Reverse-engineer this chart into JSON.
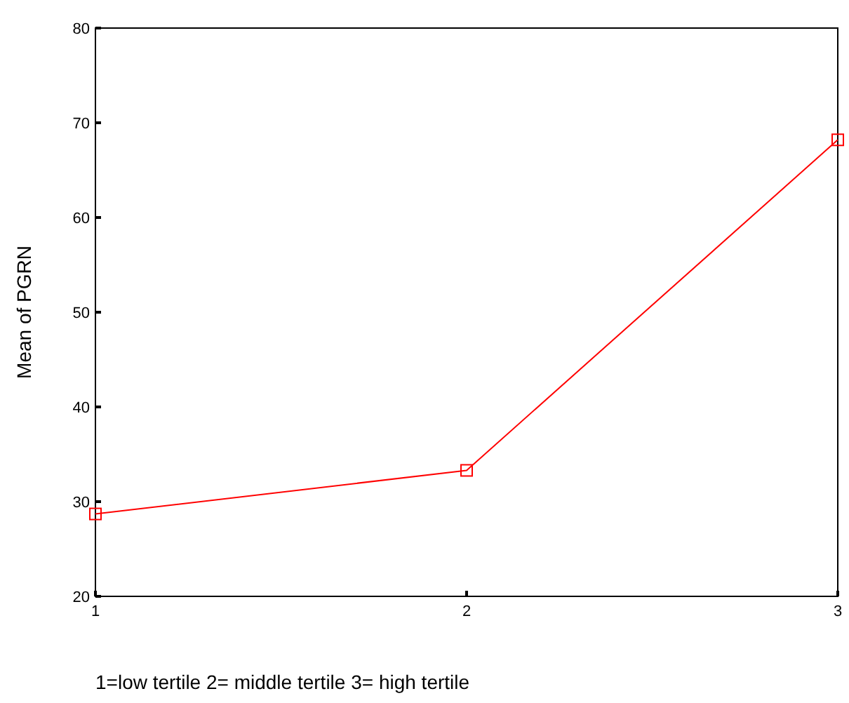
{
  "chart_data": {
    "type": "line",
    "xlabel": "1=low tertile 2= middle tertile 3= high tertile",
    "ylabel": "Mean of PGRN",
    "x": [
      1,
      2,
      3
    ],
    "series": [
      {
        "color": "#ff0000",
        "values": [
          28.7,
          33.3,
          68.2
        ]
      }
    ],
    "xlim": [
      1,
      3
    ],
    "xticks": [
      1,
      2,
      3
    ],
    "ylim": [
      20,
      80
    ],
    "yticks": [
      20,
      30,
      40,
      50,
      60,
      70,
      80
    ],
    "marker": "square",
    "line_style": "solid",
    "grid": false
  }
}
